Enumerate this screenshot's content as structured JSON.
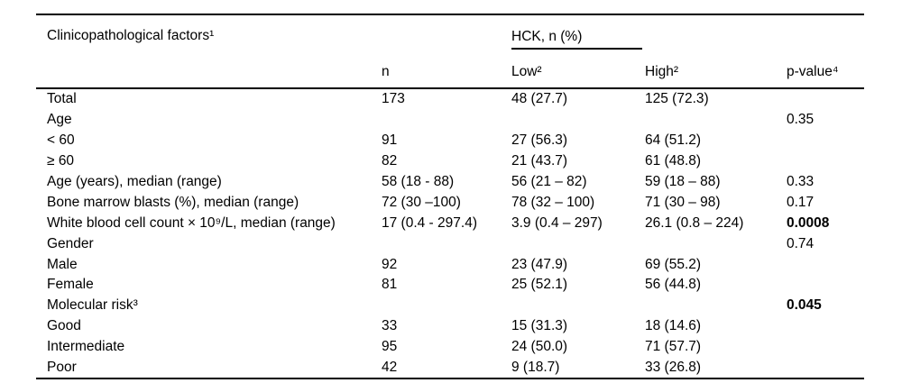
{
  "table": {
    "header": {
      "factors": "Clinicopathological factors¹",
      "n": "n",
      "hck_group": "HCK, n (%)",
      "low": "Low²",
      "high": "High²",
      "p_value": "p-value⁴"
    },
    "rows": [
      {
        "label": "Total",
        "n": "173",
        "low": "48 (27.7)",
        "high": "125 (72.3)",
        "p": "",
        "p_bold": false
      },
      {
        "label": "Age",
        "n": "",
        "low": "",
        "high": "",
        "p": "0.35",
        "p_bold": false
      },
      {
        "label": "< 60",
        "n": "91",
        "low": "27 (56.3)",
        "high": "64 (51.2)",
        "p": "",
        "p_bold": false
      },
      {
        "label": "≥ 60",
        "n": "82",
        "low": "21 (43.7)",
        "high": "61 (48.8)",
        "p": "",
        "p_bold": false
      },
      {
        "label": "Age (years), median (range)",
        "n": "58 (18 - 88)",
        "low": "56 (21 – 82)",
        "high": "59 (18 – 88)",
        "p": "0.33",
        "p_bold": false
      },
      {
        "label": "Bone marrow blasts (%), median (range)",
        "n": "72 (30 –100)",
        "low": "78 (32 – 100)",
        "high": "71 (30 – 98)",
        "p": "0.17",
        "p_bold": false
      },
      {
        "label": "White blood cell count × 10⁹/L, median (range)",
        "n": "17 (0.4 - 297.4)",
        "low": "3.9 (0.4 – 297)",
        "high": "26.1 (0.8 – 224)",
        "p": "0.0008",
        "p_bold": true
      },
      {
        "label": "Gender",
        "n": "",
        "low": "",
        "high": "",
        "p": "0.74",
        "p_bold": false
      },
      {
        "label": "Male",
        "n": "92",
        "low": "23 (47.9)",
        "high": "69 (55.2)",
        "p": "",
        "p_bold": false
      },
      {
        "label": "Female",
        "n": "81",
        "low": "25 (52.1)",
        "high": "56 (44.8)",
        "p": "",
        "p_bold": false
      },
      {
        "label": "Molecular risk³",
        "n": "",
        "low": "",
        "high": "",
        "p": "0.045",
        "p_bold": true
      },
      {
        "label": "Good",
        "n": "33",
        "low": "15 (31.3)",
        "high": "18 (14.6)",
        "p": "",
        "p_bold": false
      },
      {
        "label": "Intermediate",
        "n": "95",
        "low": "24 (50.0)",
        "high": "71 (57.7)",
        "p": "",
        "p_bold": false
      },
      {
        "label": "Poor",
        "n": "42",
        "low": "9 (18.7)",
        "high": "33 (26.8)",
        "p": "",
        "p_bold": false
      }
    ],
    "colors": {
      "text": "#000000",
      "rule": "#000000",
      "background": "#ffffff"
    }
  }
}
